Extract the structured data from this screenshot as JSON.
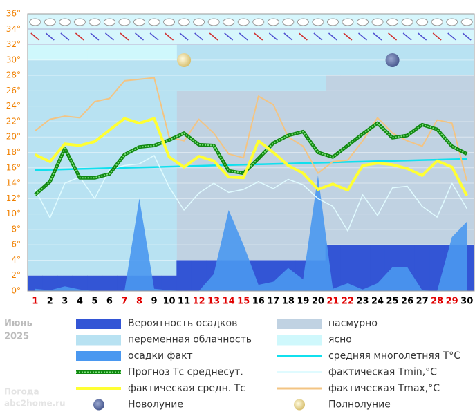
{
  "chart_data": {
    "type": "weather",
    "month": "Июнь",
    "year": "2025",
    "watermark": [
      "Погода",
      "abc2home.ru"
    ],
    "categories": [
      "1",
      "2",
      "3",
      "4",
      "5",
      "6",
      "7",
      "8",
      "9",
      "10",
      "11",
      "12",
      "13",
      "14",
      "15",
      "16",
      "17",
      "18",
      "19",
      "20",
      "21",
      "22",
      "23",
      "24",
      "25",
      "26",
      "27",
      "28",
      "29",
      "30"
    ],
    "red_days": [
      1,
      7,
      8,
      12,
      13,
      14,
      15,
      21,
      22,
      28,
      29
    ],
    "ylim": [
      0,
      36
    ],
    "yticks": [
      {
        "value": 0,
        "label": "0°"
      },
      {
        "value": 2,
        "label": "2°"
      },
      {
        "value": 4,
        "label": "4°"
      },
      {
        "value": 6,
        "label": "6°"
      },
      {
        "value": 8,
        "label": "8°"
      },
      {
        "value": 10,
        "label": "10°"
      },
      {
        "value": 12,
        "label": "12°"
      },
      {
        "value": 14,
        "label": "14°"
      },
      {
        "value": 16,
        "label": "16°"
      },
      {
        "value": 18,
        "label": "18°"
      },
      {
        "value": 20,
        "label": "20°"
      },
      {
        "value": 22,
        "label": "22°"
      },
      {
        "value": 24,
        "label": "24°"
      },
      {
        "value": 26,
        "label": "26°"
      },
      {
        "value": 28,
        "label": "28°"
      },
      {
        "value": 30,
        "label": "30°"
      },
      {
        "value": 32,
        "label": "32°"
      },
      {
        "value": 34,
        "label": "34°"
      },
      {
        "value": 36,
        "label": "36°"
      }
    ],
    "grid": true,
    "series": [
      {
        "name": "Вероятность осадков",
        "kind": "prob",
        "color": "#3355d5",
        "values": [
          2,
          2,
          2,
          2,
          2,
          2,
          2,
          2,
          2,
          2,
          4,
          4,
          4,
          4,
          4,
          4,
          4,
          4,
          4,
          4,
          6,
          6,
          6,
          6,
          6,
          6,
          6,
          6,
          6,
          6
        ]
      },
      {
        "name": "пасмурно",
        "kind": "sky",
        "color": "#c0d2e2",
        "values": [
          0,
          0,
          0,
          0,
          0,
          0,
          0,
          0,
          0,
          0,
          26,
          26,
          26,
          26,
          26,
          26,
          26,
          26,
          26,
          26,
          28,
          28,
          28,
          28,
          28,
          28,
          28,
          28,
          28,
          28
        ]
      },
      {
        "name": "переменная облачность",
        "kind": "sky",
        "color": "#b8e2f2",
        "values": [
          30,
          30,
          30,
          30,
          30,
          30,
          30,
          30,
          30,
          30,
          6,
          6,
          6,
          6,
          6,
          6,
          6,
          6,
          6,
          6,
          4,
          4,
          4,
          4,
          4,
          4,
          4,
          4,
          4,
          4
        ]
      },
      {
        "name": "ясно",
        "kind": "sky",
        "color": "#cff8fc",
        "values": [
          2,
          2,
          2,
          2,
          2,
          2,
          2,
          2,
          2,
          2,
          0,
          0,
          0,
          0,
          0,
          0,
          0,
          0,
          0,
          0,
          0,
          0,
          0,
          0,
          0,
          0,
          0,
          0,
          0,
          0
        ]
      },
      {
        "name": "осадки факт",
        "kind": "area",
        "color": "#4a98f0",
        "values": [
          0.3,
          0.1,
          0.6,
          0.2,
          0,
          0,
          0,
          12,
          0.3,
          0.1,
          0,
          0,
          2.2,
          10.5,
          6,
          0.8,
          1.2,
          3,
          1.5,
          15,
          0.3,
          1,
          0.2,
          1,
          3.1,
          3.1,
          0.1,
          0,
          7,
          9
        ]
      },
      {
        "name": "средняя многолетняя T°C",
        "kind": "line",
        "color": "#10e0ee",
        "width": 2.5,
        "values": [
          15.7,
          15.75,
          15.8,
          15.85,
          15.9,
          15.95,
          16,
          16.05,
          16.1,
          16.15,
          16.2,
          16.25,
          16.3,
          16.35,
          16.4,
          16.45,
          16.5,
          16.55,
          16.6,
          16.65,
          16.7,
          16.75,
          16.8,
          16.85,
          16.9,
          16.95,
          17,
          17.05,
          17.1,
          17.15
        ]
      },
      {
        "name": "Прогноз Тс среднесут.",
        "kind": "pattern",
        "color": "#118811",
        "values": [
          12.5,
          14.2,
          18.5,
          14.7,
          14.7,
          15.2,
          17.7,
          18.7,
          18.9,
          19.6,
          20.5,
          19,
          18.9,
          15.6,
          15.3,
          17.2,
          19.2,
          20.2,
          20.7,
          18,
          17.4,
          18.9,
          20.4,
          21.8,
          19.9,
          20.2,
          21.6,
          21,
          18.8,
          17.8
        ]
      },
      {
        "name": "фактическая Tmin,°C",
        "kind": "line",
        "color": "#e0fbff",
        "width": 1.5,
        "values": [
          13.2,
          9.5,
          14,
          14.8,
          12,
          15.8,
          16.3,
          16.5,
          17.6,
          13.5,
          10.5,
          12.7,
          14,
          12.8,
          13.2,
          14.2,
          13.3,
          14.5,
          13.8,
          12,
          11,
          7.8,
          12.5,
          9.8,
          13.4,
          13.6,
          11,
          9.6,
          14,
          10.7
        ]
      },
      {
        "name": "фактическая средн. Тс",
        "kind": "line",
        "color": "#ffff33",
        "width": 4,
        "values": [
          17.7,
          16.8,
          19.1,
          18.9,
          19.4,
          20.9,
          22.4,
          21.8,
          22.4,
          17.4,
          16.1,
          17.5,
          16.9,
          14.8,
          14.7,
          19.5,
          18,
          16.3,
          15.3,
          13.2,
          13.9,
          13.1,
          16.3,
          16.6,
          16.4,
          15.9,
          15,
          16.9,
          16.1,
          12.4
        ]
      },
      {
        "name": "фактическая Tmax,°C",
        "kind": "line",
        "color": "#f3c483",
        "width": 2,
        "values": [
          20.8,
          22.3,
          22.7,
          22.5,
          24.6,
          25,
          27.3,
          27.5,
          27.7,
          20,
          19.5,
          22.3,
          20.5,
          17.8,
          17.3,
          25.3,
          24.2,
          20,
          18.8,
          15.3,
          16.8,
          17,
          19.5,
          22.5,
          20.5,
          19.5,
          18.8,
          22.2,
          21.8,
          14.3
        ]
      }
    ],
    "moons": [
      {
        "name": "Новолуние",
        "day": 25,
        "color": "#6676a8"
      },
      {
        "name": "Полнолуние",
        "day": 11,
        "color": "#f2e6a0"
      }
    ]
  }
}
